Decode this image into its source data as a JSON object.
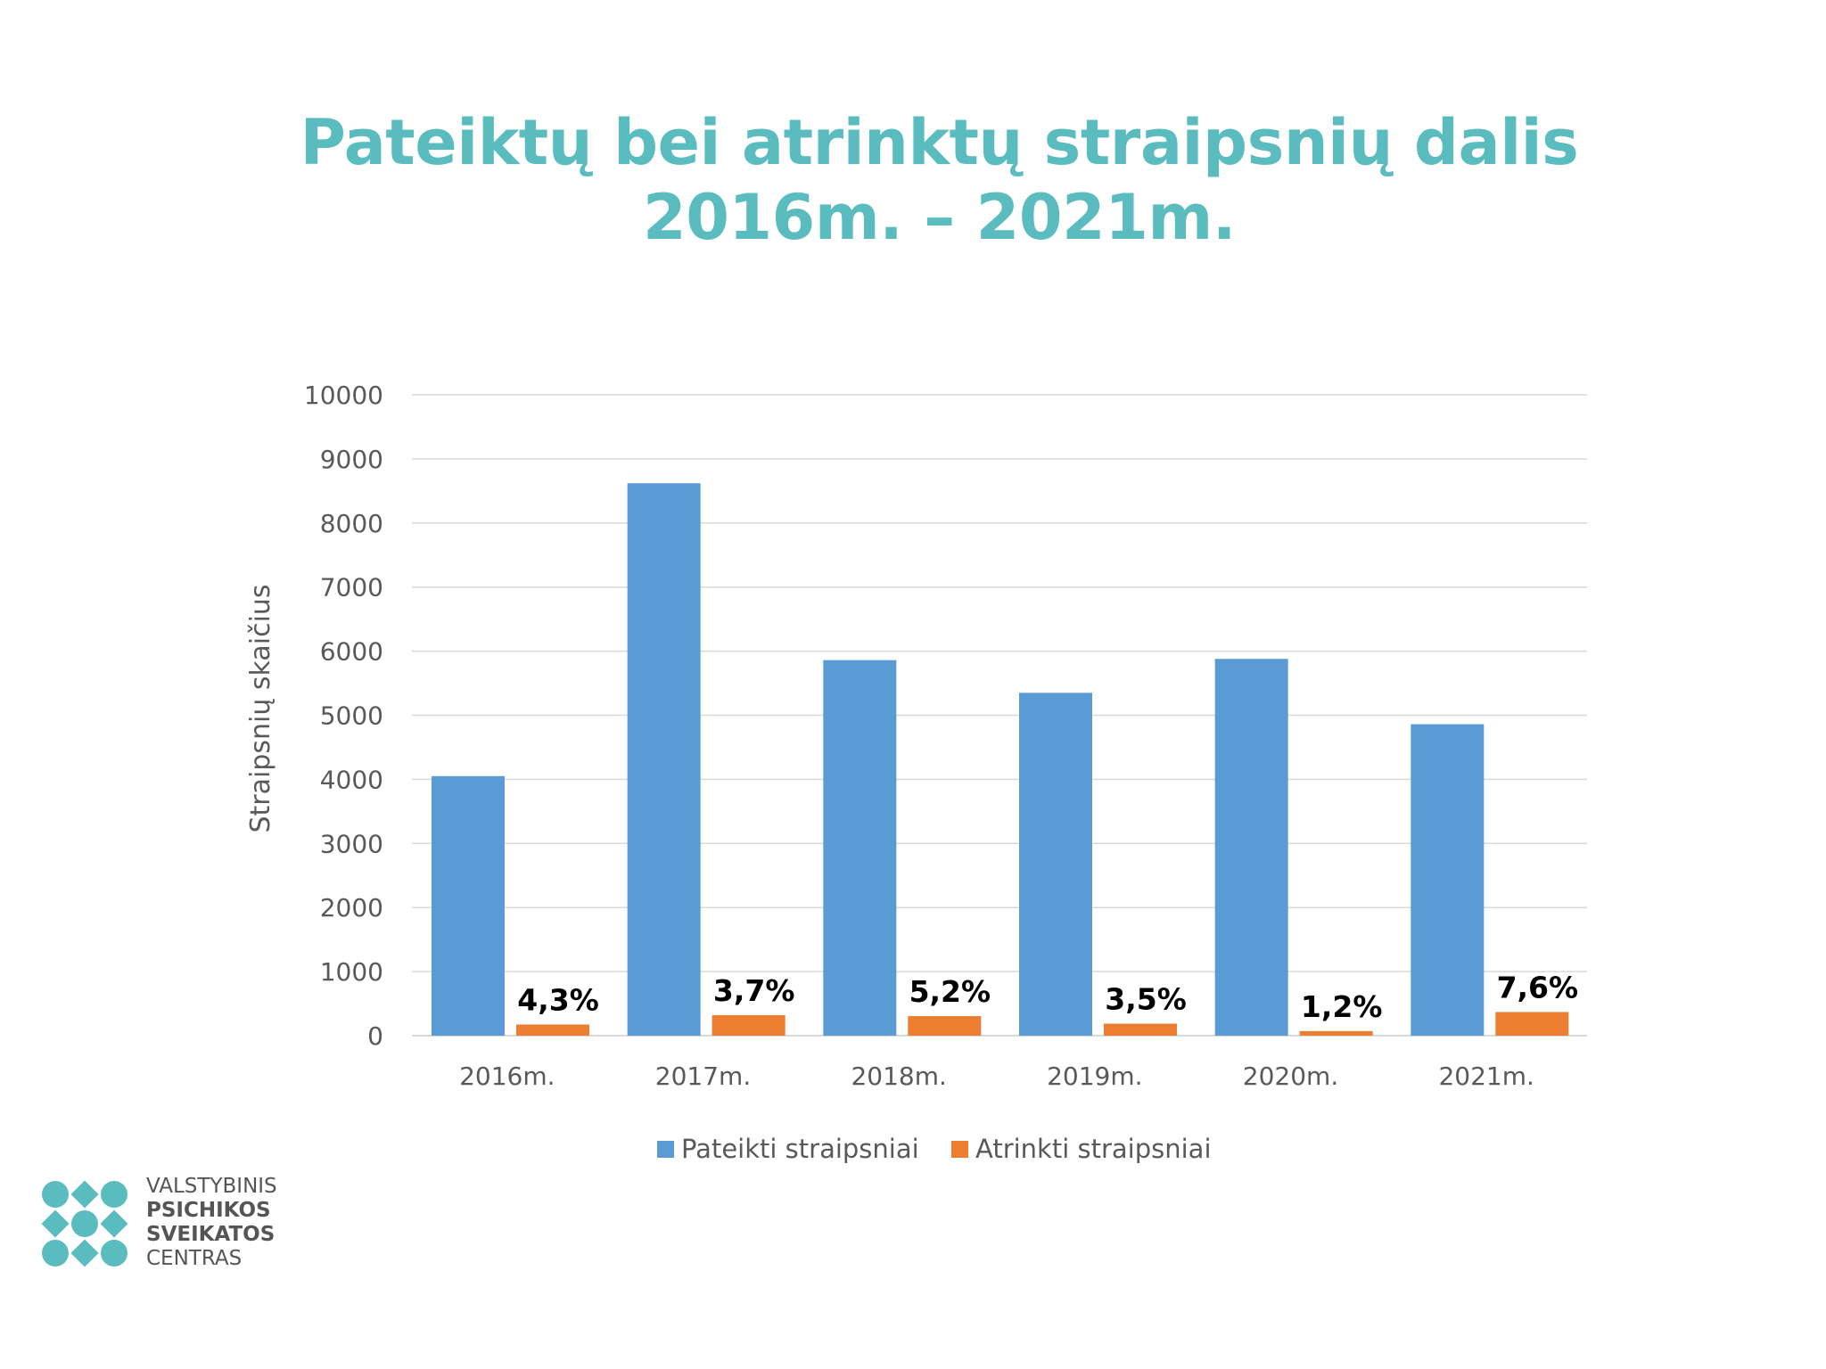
{
  "title_line1": "Pateiktų bei atrinktų straipsnių dalis",
  "title_line2": "2016m. – 2021m.",
  "chart_data": {
    "type": "bar",
    "title": "Pateiktų bei atrinktų straipsnių dalis 2016m. – 2021m.",
    "xlabel": "",
    "ylabel": "Straipsnių skaičius",
    "ylim": [
      0,
      10000
    ],
    "yticks": [
      0,
      1000,
      2000,
      3000,
      4000,
      5000,
      6000,
      7000,
      8000,
      9000,
      10000
    ],
    "grid": true,
    "legend_position": "bottom",
    "categories": [
      "2016m.",
      "2017m.",
      "2018m.",
      "2019m.",
      "2020m.",
      "2021m."
    ],
    "series": [
      {
        "name": "Pateikti straipsniai",
        "color": "#5b9bd5",
        "values": [
          4050,
          8620,
          5860,
          5350,
          5880,
          4860
        ]
      },
      {
        "name": "Atrinkti straipsniai",
        "color": "#ed7d31",
        "values": [
          174,
          319,
          305,
          187,
          71,
          369
        ]
      }
    ],
    "annotations": [
      "4,3%",
      "3,7%",
      "5,2%",
      "3,5%",
      "1,2%",
      "7,6%"
    ]
  },
  "logo": {
    "line1": "VALSTYBINIS",
    "line2": "PSICHIKOS",
    "line3": "SVEIKATOS",
    "line4": "CENTRAS",
    "color": "#5bbcbf"
  }
}
